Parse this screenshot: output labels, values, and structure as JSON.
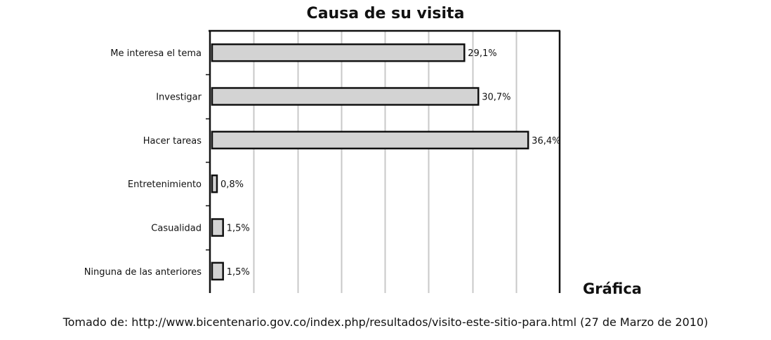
{
  "chart_data": {
    "type": "bar",
    "orientation": "horizontal",
    "title": "Causa de su visita",
    "categories": [
      "Me interesa el tema",
      "Investigar",
      "Hacer tareas",
      "Entretenimiento",
      "Casualidad",
      "Ninguna de las anteriores"
    ],
    "values": [
      29.1,
      30.7,
      36.4,
      0.8,
      1.5,
      1.5
    ],
    "value_labels": [
      "29,1%",
      "30,7%",
      "36,4%",
      "0,8%",
      "1,5%",
      "1,5%"
    ],
    "xlim": [
      0,
      40
    ],
    "grid": true,
    "bar_color": "#d3d3d3",
    "bar_edge_color": "#111111",
    "grid_color": "#c8c8c8"
  },
  "side_label": "Gráfica",
  "source_text": "Tomado de: http://www.bicentenario.gov.co/index.php/resultados/visito-este-sitio-para.html (27 de Marzo de 2010)"
}
